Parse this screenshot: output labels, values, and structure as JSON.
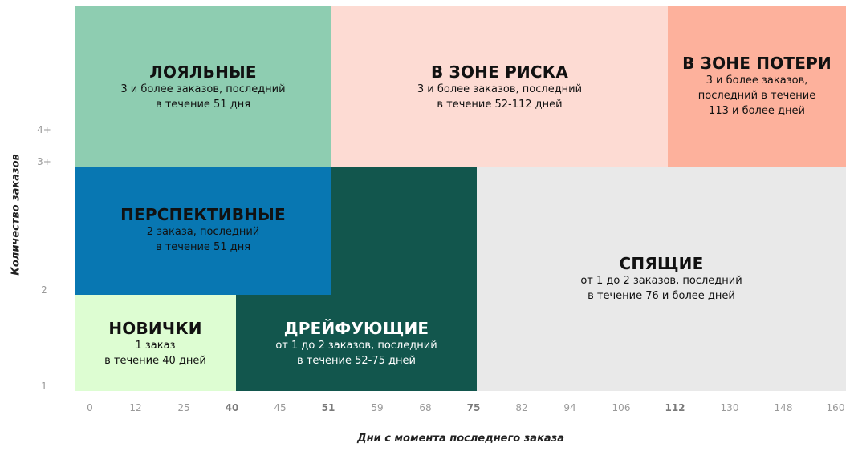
{
  "segments": {
    "loyal": {
      "title": "ЛОЯЛЬНЫЕ",
      "desc": "3 и более заказов, последний\nв течение 51 дня",
      "color": "#8ecdb1",
      "text_color": "#111111"
    },
    "at_risk": {
      "title": "В ЗОНЕ РИСКА",
      "desc": "3 и более заказов, последний\nв течение 52-112 дней",
      "color": "#fddbd3",
      "text_color": "#111111"
    },
    "losing": {
      "title": "В ЗОНЕ ПОТЕРИ",
      "desc": "3 и более заказов,\nпоследний в течение\n113 и более  дней",
      "color": "#fdb19c",
      "text_color": "#111111"
    },
    "promising": {
      "title": "ПЕРСПЕКТИВНЫЕ",
      "desc": "2 заказа, последний\nв течение 51 дня",
      "color": "#0877b2",
      "text_color": "#111111"
    },
    "sleeping": {
      "title": "СПЯЩИЕ",
      "desc": "от 1 до 2 заказов, последний\nв течение 76 и более дней",
      "color": "#e9e9e9",
      "text_color": "#111111"
    },
    "newbies": {
      "title": "НОВИЧКИ",
      "desc": "1 заказ\nв течение 40 дней",
      "color": "#ddfdd2",
      "text_color": "#111111"
    },
    "drifting": {
      "title": "ДРЕЙФУЮЩИЕ",
      "desc": "от 1 до 2 заказов, последний\nв течение 52-75 дней",
      "color": "#12564d",
      "text_color": "#ffffff"
    }
  },
  "x_axis": {
    "label": "Дни с момента последнего заказа",
    "ticks": [
      "0",
      "12",
      "25",
      "40",
      "45",
      "51",
      "59",
      "68",
      "75",
      "82",
      "94",
      "106",
      "112",
      "130",
      "148",
      "160"
    ],
    "major_ticks": [
      "40",
      "51",
      "75",
      "112"
    ]
  },
  "y_axis": {
    "label": "Количество заказов",
    "ticks": [
      "4+",
      "3+",
      "2",
      "1"
    ]
  }
}
